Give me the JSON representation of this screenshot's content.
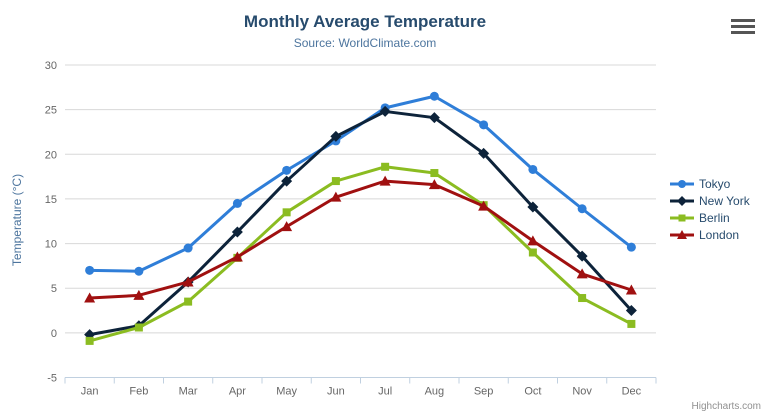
{
  "chart_data": {
    "type": "line",
    "title": "Monthly Average Temperature",
    "subtitle": "Source: WorldClimate.com",
    "categories": [
      "Jan",
      "Feb",
      "Mar",
      "Apr",
      "May",
      "Jun",
      "Jul",
      "Aug",
      "Sep",
      "Oct",
      "Nov",
      "Dec"
    ],
    "xlabel": "",
    "ylabel": "Temperature (°C)",
    "ylim": [
      -5,
      30
    ],
    "ytick_step": 5,
    "grid": true,
    "legend_position": "right",
    "series": [
      {
        "name": "Tokyo",
        "color": "#2f7ed8",
        "marker": "circle",
        "values": [
          7.0,
          6.9,
          9.5,
          14.5,
          18.2,
          21.5,
          25.2,
          26.5,
          23.3,
          18.3,
          13.9,
          9.6
        ]
      },
      {
        "name": "New York",
        "color": "#0d233a",
        "marker": "diamond",
        "values": [
          -0.2,
          0.8,
          5.7,
          11.3,
          17.0,
          22.0,
          24.8,
          24.1,
          20.1,
          14.1,
          8.6,
          2.5
        ]
      },
      {
        "name": "Berlin",
        "color": "#8bbc21",
        "marker": "square",
        "values": [
          -0.9,
          0.6,
          3.5,
          8.4,
          13.5,
          17.0,
          18.6,
          17.9,
          14.3,
          9.0,
          3.9,
          1.0
        ]
      },
      {
        "name": "London",
        "color": "#a01010",
        "marker": "triangle",
        "values": [
          3.9,
          4.2,
          5.7,
          8.5,
          11.9,
          15.2,
          17.0,
          16.6,
          14.2,
          10.3,
          6.6,
          4.8
        ]
      }
    ]
  },
  "theme": {
    "title_color": "#274b6d",
    "subtitle_color": "#4d759e",
    "axis_label_color": "#666666",
    "grid_color": "#d8d8d8",
    "axis_line_color": "#c0d0e0",
    "legend_text_color": "#274b6d"
  },
  "credits": {
    "label": "Highcharts.com"
  },
  "icons": {
    "context_menu": "hamburger-icon"
  }
}
